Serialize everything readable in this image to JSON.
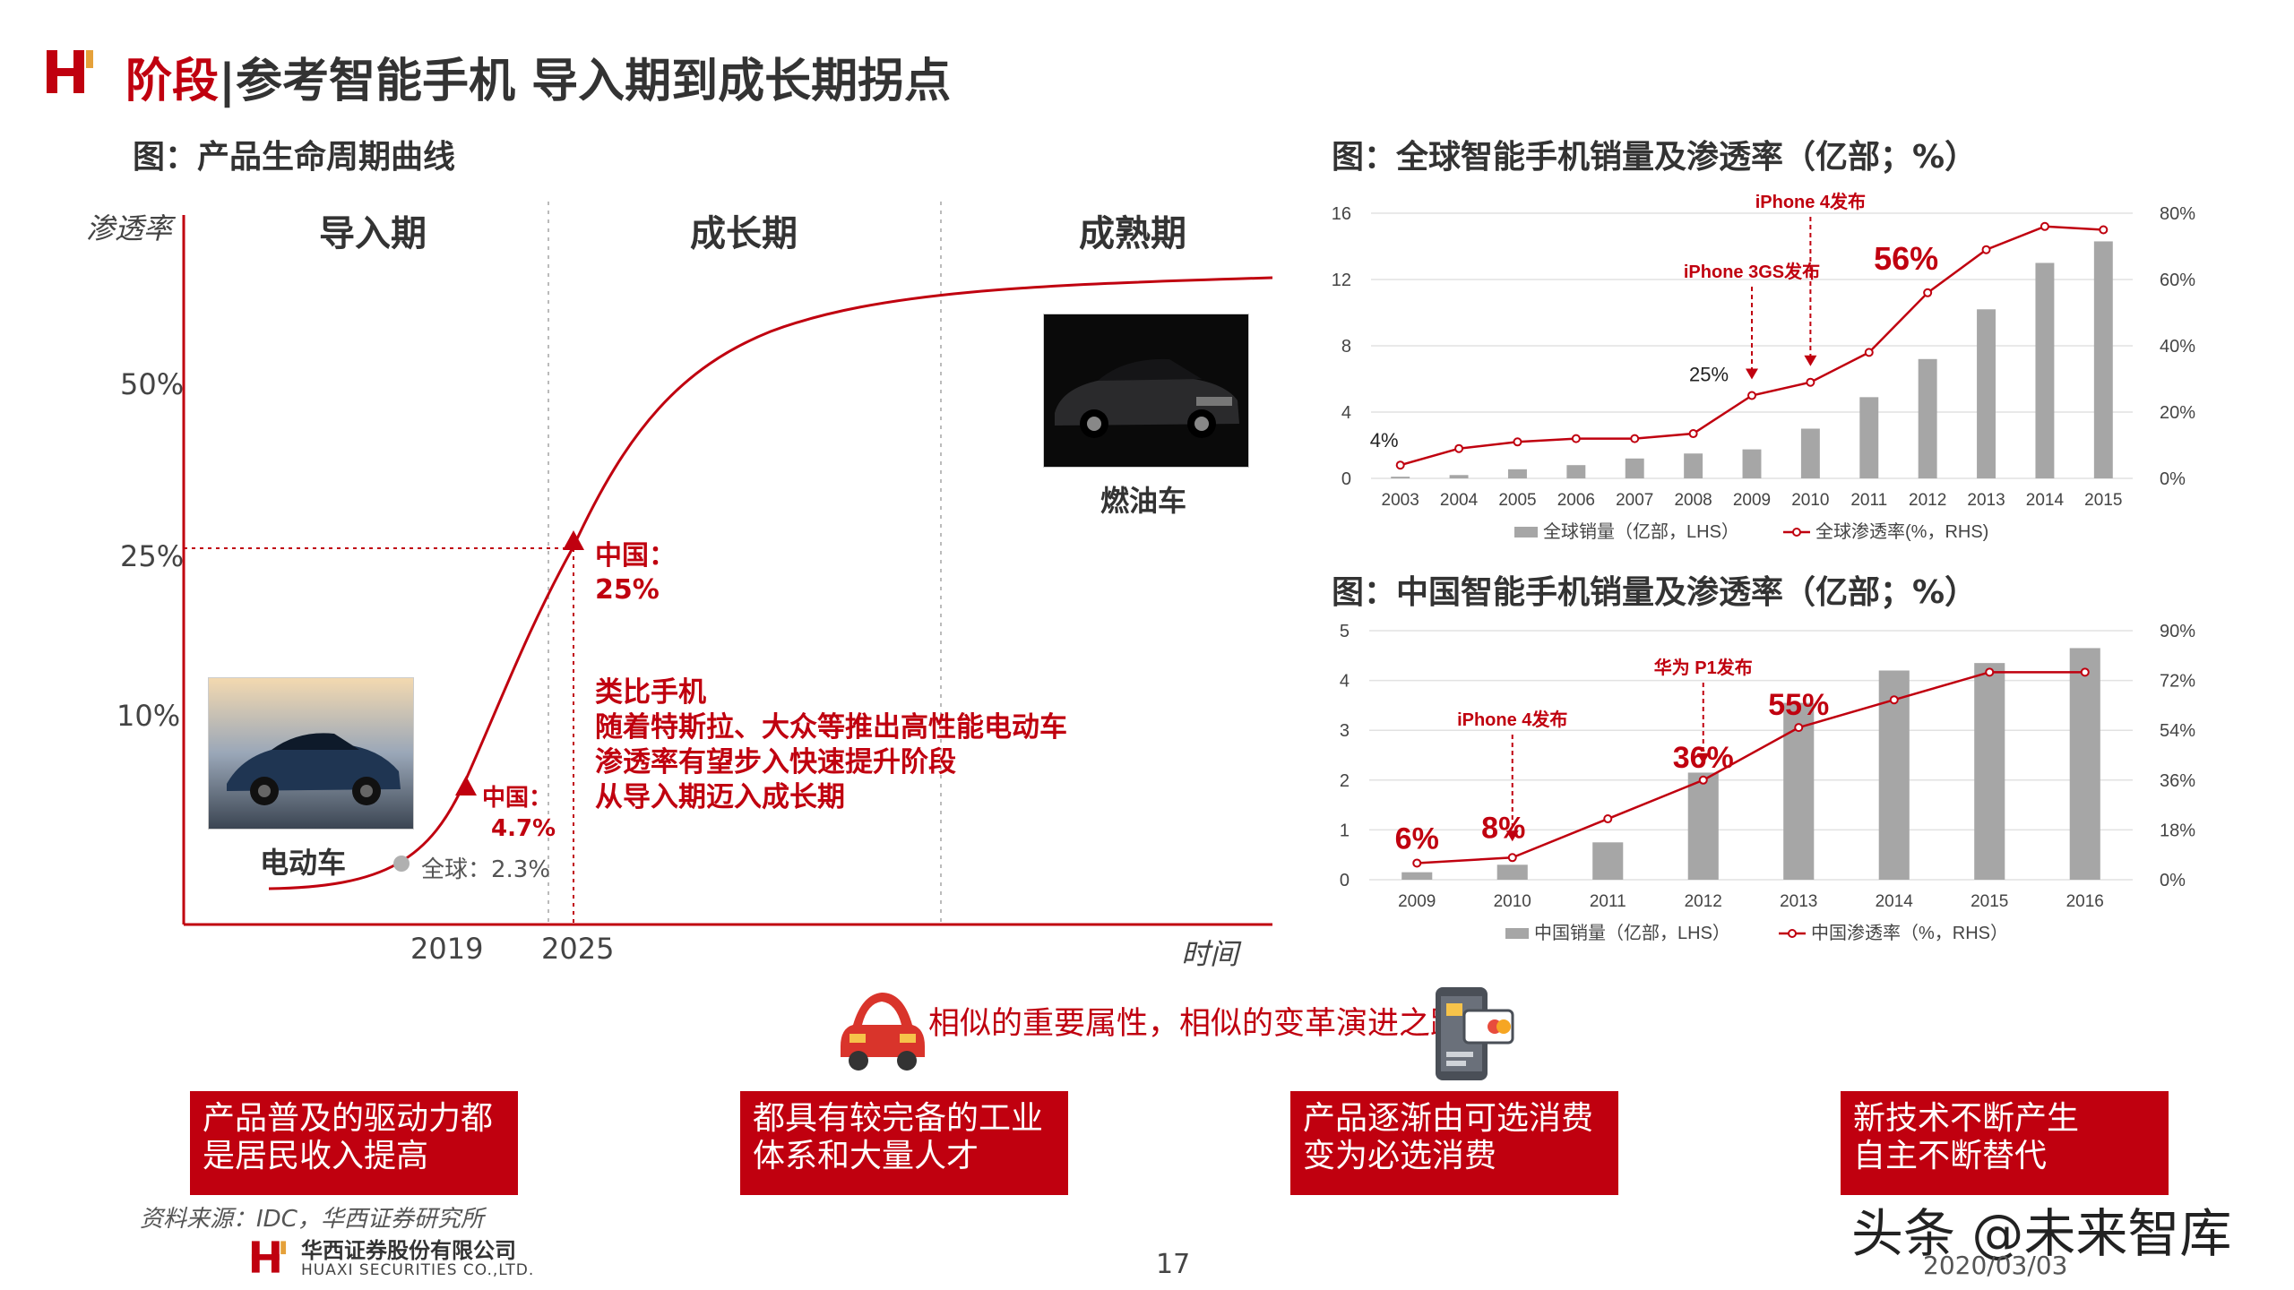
{
  "header": {
    "title_red": "阶段",
    "title_rest": "|参考智能手机 导入期到成长期拐点"
  },
  "lifecycle": {
    "subtitle": "图：产品生命周期曲线",
    "ylabel": "渗透率",
    "xlabel": "时间",
    "stages": [
      "导入期",
      "成长期",
      "成熟期"
    ],
    "yticks": [
      "50%",
      "25%",
      "10%"
    ],
    "xticks": [
      "2019",
      "2025"
    ],
    "china_25_title": "中国：",
    "china_25_value": "25%",
    "china_47_title": "中国：",
    "china_47_value": "4.7%",
    "global_label": "全球：2.3%",
    "ev_label": "电动车",
    "ice_label": "燃油车",
    "analogy": [
      "类比手机",
      "随着特斯拉、大众等推出高性能电动车",
      "渗透率有望步入快速提升阶段",
      "从导入期迈入成长期"
    ]
  },
  "chart_data": [
    {
      "type": "bar",
      "title": "图：全球智能手机销量及渗透率（亿部；%）",
      "categories": [
        "2003",
        "2004",
        "2005",
        "2006",
        "2007",
        "2008",
        "2009",
        "2010",
        "2011",
        "2012",
        "2013",
        "2014",
        "2015"
      ],
      "series": [
        {
          "name": "全球销量（亿部，LHS）",
          "type": "bar",
          "axis": "left",
          "values": [
            0.1,
            0.2,
            0.55,
            0.8,
            1.2,
            1.5,
            1.75,
            3.0,
            4.9,
            7.2,
            10.2,
            13.0,
            14.3
          ]
        },
        {
          "name": "全球渗透率(%，RHS)",
          "type": "line",
          "axis": "right",
          "values": [
            4,
            9,
            11,
            12,
            12,
            13.5,
            25,
            29,
            38,
            56,
            69,
            76,
            75
          ]
        }
      ],
      "ylim_left": [
        0,
        16
      ],
      "yticks_left": [
        "0",
        "4",
        "8",
        "12",
        "16"
      ],
      "ylim_right": [
        0,
        80
      ],
      "yticks_right": [
        "0%",
        "20%",
        "40%",
        "60%",
        "80%"
      ],
      "annotations": [
        {
          "text": "iPhone 3GS发布",
          "category": "2009"
        },
        {
          "text": "iPhone 4发布",
          "category": "2010"
        }
      ],
      "data_labels": [
        {
          "text": "4%",
          "category": "2003"
        },
        {
          "text": "25%",
          "category": "2009"
        },
        {
          "text": "56%",
          "category": "2012"
        }
      ],
      "legend": "bottom"
    },
    {
      "type": "bar",
      "title": "图：中国智能手机销量及渗透率（亿部；%）",
      "categories": [
        "2009",
        "2010",
        "2011",
        "2012",
        "2013",
        "2014",
        "2015",
        "2016"
      ],
      "series": [
        {
          "name": "中国销量（亿部，LHS）",
          "type": "bar",
          "axis": "left",
          "values": [
            0.15,
            0.3,
            0.75,
            2.15,
            3.55,
            4.2,
            4.35,
            4.65
          ]
        },
        {
          "name": "中国渗透率（%，RHS）",
          "type": "line",
          "axis": "right",
          "values": [
            6,
            8,
            22,
            36,
            55,
            65,
            75,
            75
          ]
        }
      ],
      "ylim_left": [
        0,
        5
      ],
      "yticks_left": [
        "0",
        "1",
        "2",
        "3",
        "4",
        "5"
      ],
      "ylim_right": [
        0,
        90
      ],
      "yticks_right": [
        "0%",
        "18%",
        "36%",
        "54%",
        "72%",
        "90%"
      ],
      "annotations": [
        {
          "text": "iPhone 4发布",
          "category": "2010"
        },
        {
          "text": "华为 P1发布",
          "category": "2012"
        }
      ],
      "data_labels": [
        {
          "text": "6%",
          "category": "2009"
        },
        {
          "text": "8%",
          "category": "2010"
        },
        {
          "text": "36%",
          "category": "2012"
        },
        {
          "text": "55%",
          "category": "2013"
        }
      ],
      "legend": "bottom"
    }
  ],
  "middle": {
    "tagline": "相似的重要属性，相似的变革演进之路"
  },
  "boxes": [
    [
      "产品普及的驱动力都",
      "是居民收入提高"
    ],
    [
      "都具有较完备的工业",
      "体系和大量人才"
    ],
    [
      "产品逐渐由可选消费",
      "变为必选消费"
    ],
    [
      "新技术不断产生",
      "自主不断替代"
    ]
  ],
  "footer": {
    "source": "资料来源：IDC，华西证券研究所",
    "company_cn": "华西证券股份有限公司",
    "company_en": "HUAXI SECURITIES CO.,LTD.",
    "page": "17",
    "watermark": "头条 @未来智库",
    "date": "2020/03/03"
  },
  "colors": {
    "accent": "#c0000f",
    "bar": "#a6a6a6",
    "line": "#c0000f"
  }
}
